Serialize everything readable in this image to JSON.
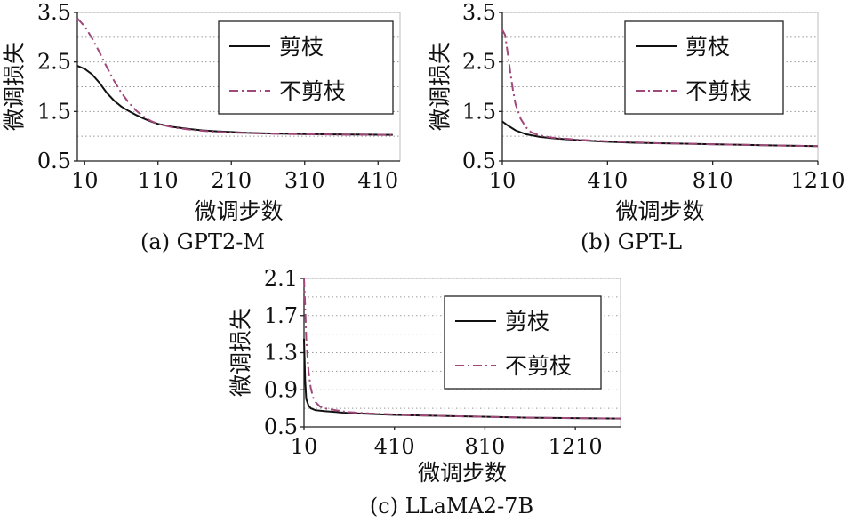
{
  "chart_data": [
    {
      "type": "line",
      "caption": "(a) GPT2-M",
      "xlabel": "微调步数",
      "ylabel": "微调损失",
      "xlim": [
        0,
        440
      ],
      "ylim": [
        0.5,
        3.5
      ],
      "xticks": [
        10,
        110,
        210,
        310,
        410
      ],
      "yticks": [
        0.5,
        1.5,
        2.5,
        3.5
      ],
      "ytick_labels": [
        "0.5",
        "1.5",
        "2.5",
        "3.5"
      ],
      "grid": "horizontal-dotted",
      "legend_position": "top-right",
      "series": [
        {
          "name": "剪枝",
          "color": "#111111",
          "style": "solid",
          "x": [
            0,
            10,
            20,
            30,
            40,
            50,
            60,
            70,
            80,
            90,
            100,
            110,
            130,
            150,
            170,
            190,
            210,
            230,
            250,
            270,
            290,
            310,
            330,
            350,
            370,
            390,
            410,
            430
          ],
          "y": [
            2.42,
            2.36,
            2.25,
            2.08,
            1.88,
            1.72,
            1.6,
            1.51,
            1.43,
            1.36,
            1.3,
            1.25,
            1.19,
            1.15,
            1.12,
            1.1,
            1.085,
            1.07,
            1.06,
            1.055,
            1.05,
            1.045,
            1.04,
            1.038,
            1.035,
            1.033,
            1.03,
            1.028
          ]
        },
        {
          "name": "不剪枝",
          "color": "#a0487a",
          "style": "dash-dot",
          "x": [
            0,
            10,
            20,
            30,
            40,
            50,
            60,
            70,
            80,
            90,
            100,
            110,
            130,
            150,
            170,
            190,
            210,
            230,
            250,
            270,
            290,
            310,
            330,
            350,
            370,
            390,
            410,
            430
          ],
          "y": [
            3.38,
            3.22,
            2.98,
            2.7,
            2.4,
            2.12,
            1.88,
            1.68,
            1.52,
            1.4,
            1.31,
            1.25,
            1.18,
            1.14,
            1.11,
            1.09,
            1.075,
            1.065,
            1.057,
            1.05,
            1.045,
            1.04,
            1.037,
            1.034,
            1.032,
            1.03,
            1.028,
            1.026
          ]
        }
      ]
    },
    {
      "type": "line",
      "caption": "(b) GPT-L",
      "xlabel": "微调步数",
      "ylabel": "微调损失",
      "xlim": [
        10,
        1210
      ],
      "ylim": [
        0.5,
        3.5
      ],
      "xticks": [
        10,
        410,
        810,
        1210
      ],
      "yticks": [
        0.5,
        1.5,
        2.5,
        3.5
      ],
      "ytick_labels": [
        "0.5",
        "1.5",
        "2.5",
        "3.5"
      ],
      "grid": "horizontal-dotted",
      "legend_position": "top-right",
      "series": [
        {
          "name": "剪枝",
          "color": "#111111",
          "style": "solid",
          "x": [
            10,
            30,
            60,
            100,
            150,
            200,
            250,
            300,
            400,
            500,
            600,
            700,
            800,
            900,
            1000,
            1100,
            1210
          ],
          "y": [
            1.3,
            1.22,
            1.12,
            1.04,
            0.99,
            0.96,
            0.94,
            0.92,
            0.89,
            0.87,
            0.86,
            0.85,
            0.84,
            0.83,
            0.82,
            0.81,
            0.8
          ]
        },
        {
          "name": "不剪枝",
          "color": "#a0487a",
          "style": "dash-dot",
          "x": [
            10,
            20,
            30,
            40,
            50,
            60,
            80,
            100,
            120,
            150,
            200,
            250,
            300,
            400,
            500,
            600,
            700,
            800,
            900,
            1000,
            1100,
            1210
          ],
          "y": [
            3.15,
            3.05,
            2.7,
            2.3,
            1.95,
            1.65,
            1.35,
            1.18,
            1.08,
            1.02,
            0.97,
            0.95,
            0.93,
            0.9,
            0.88,
            0.86,
            0.85,
            0.84,
            0.83,
            0.82,
            0.81,
            0.8
          ]
        }
      ]
    },
    {
      "type": "line",
      "caption": "(c) LLaMA2-7B",
      "xlabel": "微调步数",
      "ylabel": "微调损失",
      "xlim": [
        10,
        1410
      ],
      "ylim": [
        0.5,
        2.1
      ],
      "xticks": [
        10,
        410,
        810,
        1210
      ],
      "yticks": [
        0.5,
        0.9,
        1.3,
        1.7,
        2.1
      ],
      "ytick_labels": [
        "0.5",
        "0.9",
        "1.3",
        "1.7",
        "2.1"
      ],
      "grid": "horizontal-dotted",
      "legend_position": "top-right",
      "series": [
        {
          "name": "剪枝",
          "color": "#111111",
          "style": "solid",
          "x": [
            10,
            15,
            20,
            30,
            40,
            60,
            100,
            150,
            200,
            300,
            400,
            500,
            600,
            800,
            1000,
            1200,
            1410
          ],
          "y": [
            1.45,
            1.0,
            0.8,
            0.73,
            0.7,
            0.68,
            0.67,
            0.66,
            0.65,
            0.64,
            0.63,
            0.625,
            0.62,
            0.61,
            0.6,
            0.595,
            0.59
          ]
        },
        {
          "name": "不剪枝",
          "color": "#a0487a",
          "style": "dash-dot",
          "x": [
            10,
            15,
            20,
            30,
            40,
            50,
            60,
            80,
            100,
            150,
            200,
            300,
            400,
            500,
            600,
            800,
            1000,
            1200,
            1410
          ],
          "y": [
            2.1,
            1.8,
            1.45,
            1.1,
            0.92,
            0.82,
            0.77,
            0.72,
            0.7,
            0.68,
            0.66,
            0.645,
            0.635,
            0.625,
            0.62,
            0.61,
            0.6,
            0.595,
            0.59
          ]
        }
      ]
    }
  ]
}
